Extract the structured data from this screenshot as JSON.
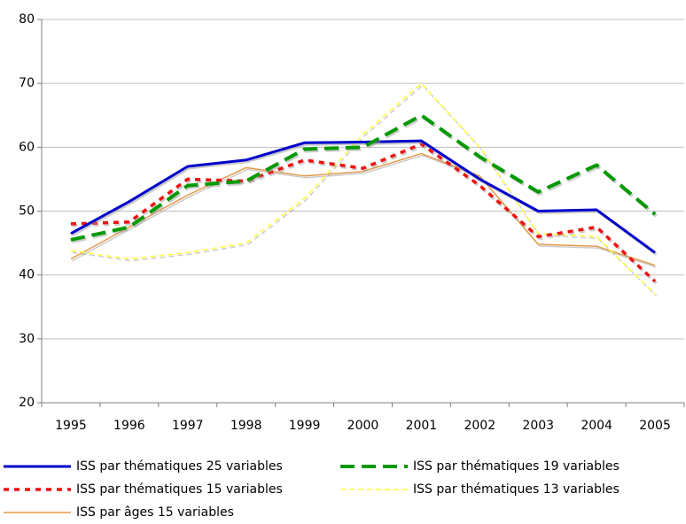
{
  "chart_data": {
    "type": "line",
    "categories": [
      "1995",
      "1996",
      "1997",
      "1998",
      "1999",
      "2000",
      "2001",
      "2002",
      "2003",
      "2004",
      "2005"
    ],
    "series": [
      {
        "name": "ISS par thématiques 25 variables",
        "color": "#0000cc",
        "values": [
          46.5,
          51.5,
          57,
          58,
          60.7,
          60.8,
          61,
          55,
          50,
          50.2,
          43.5
        ]
      },
      {
        "name": "ISS par thématiques 19 variables",
        "color": "#009900",
        "values": [
          45.5,
          47.5,
          54,
          54.7,
          59.7,
          60,
          65,
          58.5,
          53,
          57.2,
          49.5
        ]
      },
      {
        "name": "ISS par thématiques 15 variables",
        "color": "#ee1111",
        "values": [
          48,
          48.3,
          55,
          54.7,
          58,
          56.7,
          60.5,
          54,
          46,
          47.5,
          39
        ]
      },
      {
        "name": "ISS par thématiques 13 variables",
        "color": "#ffff33",
        "values": [
          43.8,
          42.5,
          43.5,
          45,
          52,
          62,
          70,
          60,
          46.5,
          46,
          37
        ]
      },
      {
        "name": "ISS par âges 15 variables",
        "color": "#e69a4a",
        "values": [
          42.5,
          47.5,
          52.5,
          56.8,
          55.5,
          56.2,
          59,
          55.5,
          44.8,
          44.5,
          41.5
        ]
      }
    ],
    "ylim": [
      20,
      80
    ],
    "yticks": [
      20,
      30,
      40,
      50,
      60,
      70,
      80
    ],
    "grid": true
  }
}
